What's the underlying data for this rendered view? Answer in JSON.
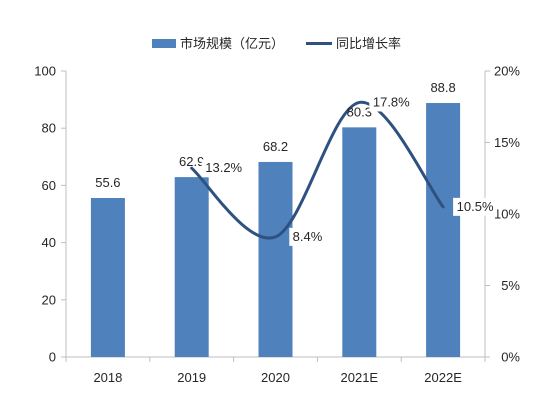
{
  "chart_data": {
    "type": "bar",
    "categories": [
      "2018",
      "2019",
      "2020",
      "2021E",
      "2022E"
    ],
    "series": [
      {
        "name": "市场规模（亿元）",
        "type": "bar",
        "axis": "left",
        "values": [
          55.6,
          62.9,
          68.2,
          80.3,
          88.8
        ],
        "labels": [
          "55.6",
          "62.9",
          "68.2",
          "80.3",
          "88.8"
        ]
      },
      {
        "name": "同比增长率",
        "type": "line",
        "axis": "right",
        "values": [
          null,
          13.2,
          8.4,
          17.8,
          10.5
        ],
        "labels": [
          "",
          "13.2%",
          "8.4%",
          "17.8%",
          "10.5%"
        ]
      }
    ],
    "y_left": {
      "min": 0,
      "max": 100,
      "ticks": [
        "0",
        "20",
        "40",
        "60",
        "80",
        "100"
      ]
    },
    "y_right": {
      "min": 0,
      "max": 20,
      "ticks": [
        "0%",
        "5%",
        "10%",
        "15%",
        "20%"
      ]
    },
    "legend_position": "top-center",
    "grid": false,
    "colors": {
      "bar": "#4f81bd",
      "line": "#2f5180",
      "axis": "#bfbfbf"
    }
  }
}
